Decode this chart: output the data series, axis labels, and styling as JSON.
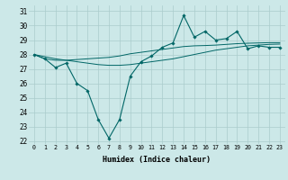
{
  "xlabel": "Humidex (Indice chaleur)",
  "bg_color": "#cce8e8",
  "grid_color": "#aacccc",
  "line_color": "#006666",
  "xlim_min": -0.5,
  "xlim_max": 23.5,
  "ylim_min": 21.8,
  "ylim_max": 31.4,
  "yticks": [
    22,
    23,
    24,
    25,
    26,
    27,
    28,
    29,
    30,
    31
  ],
  "xticks": [
    0,
    1,
    2,
    3,
    4,
    5,
    6,
    7,
    8,
    9,
    10,
    11,
    12,
    13,
    14,
    15,
    16,
    17,
    18,
    19,
    20,
    21,
    22,
    23
  ],
  "series_main": [
    28.0,
    27.7,
    27.1,
    27.4,
    26.0,
    25.5,
    23.5,
    22.2,
    23.5,
    26.5,
    27.5,
    27.9,
    28.5,
    28.8,
    30.7,
    29.2,
    29.6,
    29.0,
    29.1,
    29.6,
    28.4,
    28.6,
    28.5,
    28.5
  ],
  "series_upper": [
    28.0,
    27.7,
    27.6,
    27.6,
    27.65,
    27.7,
    27.75,
    27.8,
    27.9,
    28.05,
    28.15,
    28.25,
    28.35,
    28.45,
    28.55,
    28.6,
    28.62,
    28.65,
    28.7,
    28.75,
    28.78,
    28.8,
    28.82,
    28.82
  ],
  "series_lower": [
    28.0,
    27.85,
    27.7,
    27.6,
    27.5,
    27.4,
    27.3,
    27.25,
    27.25,
    27.3,
    27.4,
    27.5,
    27.6,
    27.7,
    27.85,
    28.0,
    28.15,
    28.3,
    28.4,
    28.5,
    28.6,
    28.65,
    28.7,
    28.72
  ]
}
